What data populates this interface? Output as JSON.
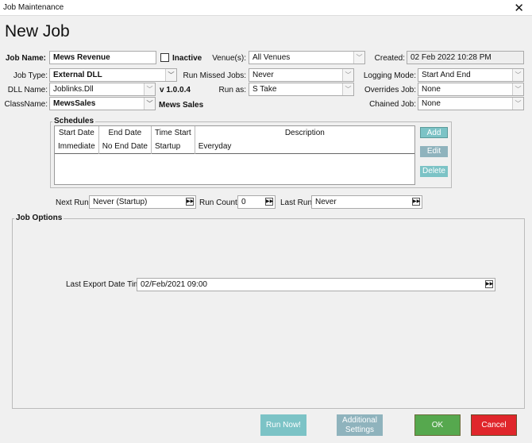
{
  "window": {
    "title": "Job Maintenance",
    "close": "✕"
  },
  "heading": "New Job",
  "form": {
    "job_name_label": "Job Name:",
    "job_name": "Mews Revenue",
    "inactive_label": "Inactive",
    "venues_label": "Venue(s):",
    "venues": "All Venues",
    "created_label": "Created:",
    "created": "02 Feb 2022 10:28 PM",
    "job_type_label": "Job Type:",
    "job_type": "External DLL",
    "run_missed_label": "Run Missed Jobs:",
    "run_missed": "Never",
    "logging_label": "Logging Mode:",
    "logging": "Start And End",
    "dll_label": "DLL Name:",
    "dll": "Joblinks.Dll",
    "version": "v 1.0.0.4",
    "run_as_label": "Run as:",
    "run_as": "S  Take",
    "overrides_label": "Overrides Job:",
    "overrides": "None",
    "class_label": "ClassName:",
    "class": "MewsSales",
    "class_desc": "Mews Sales",
    "chained_label": "Chained Job:",
    "chained": "None"
  },
  "schedules": {
    "title": "Schedules",
    "columns": [
      "Start Date",
      "End Date",
      "Time Start",
      "Description"
    ],
    "rows": [
      [
        "Immediate",
        "No End Date",
        "Startup",
        "Everyday"
      ]
    ],
    "add": "Add",
    "edit": "Edit",
    "delete": "Delete"
  },
  "runinfo": {
    "next_label": "Next Run:",
    "next": "Never (Startup)",
    "count_label": "Run Count:",
    "count": "0",
    "last_label": "Last Run:",
    "last": "Never"
  },
  "options": {
    "title": "Job Options",
    "export_label": "Last Export Date Time",
    "export": "02/Feb/2021 09:00"
  },
  "buttons": {
    "run_now": "Run Now!",
    "additional_1": "Additional",
    "additional_2": "Settings",
    "ok": "OK",
    "cancel": "Cancel"
  },
  "colors": {
    "teal": "#7cc3c6",
    "grey_teal": "#8fb3bd",
    "ok": "#56a84e",
    "cancel": "#e0262b"
  }
}
